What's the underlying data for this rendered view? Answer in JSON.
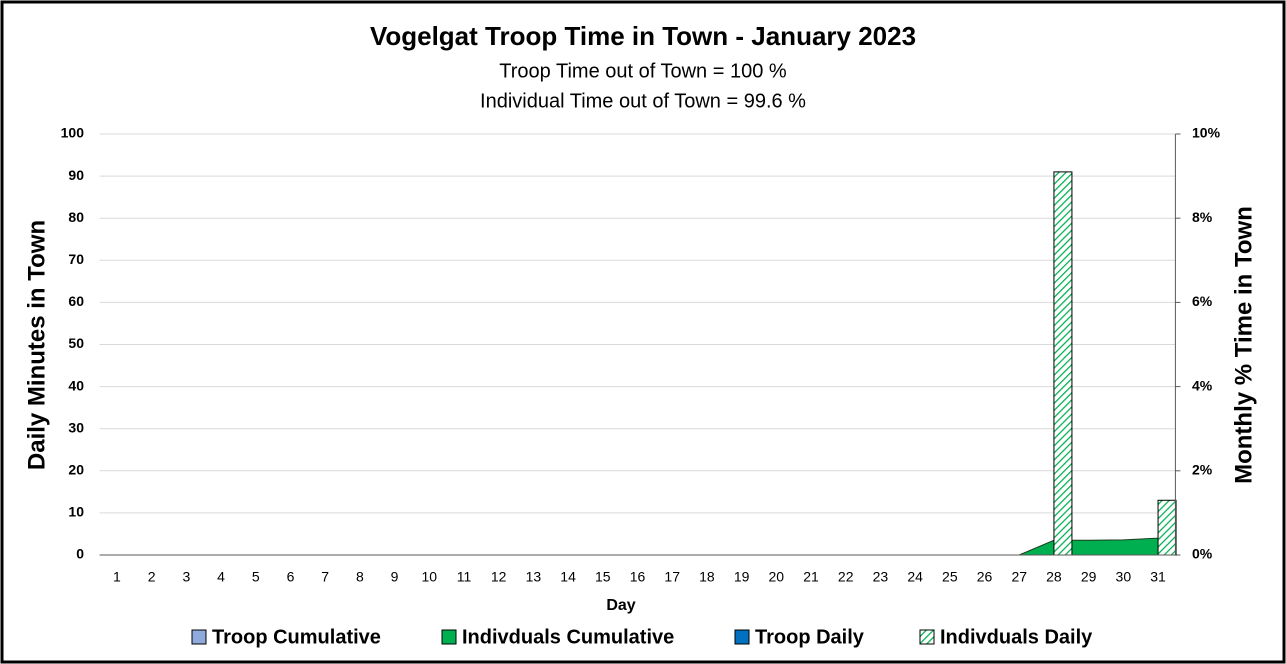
{
  "chart_data": {
    "type": "combo",
    "title": "Vogelgat Troop Time in Town - January 2023",
    "subtitles": [
      "Troop Time out of Town = 100 %",
      "Individual Time out of Town = 99.6 %"
    ],
    "x_label": "Day",
    "y_label": "Daily Minutes in Town",
    "y2_label": "Monthly % Time in Town",
    "categories": [
      "1",
      "2",
      "3",
      "4",
      "5",
      "6",
      "7",
      "8",
      "9",
      "10",
      "11",
      "12",
      "13",
      "14",
      "15",
      "16",
      "17",
      "18",
      "19",
      "20",
      "21",
      "22",
      "23",
      "24",
      "25",
      "26",
      "27",
      "28",
      "29",
      "30",
      "31"
    ],
    "ylim": [
      0,
      100
    ],
    "yticks": [
      0,
      10,
      20,
      30,
      40,
      50,
      60,
      70,
      80,
      90,
      100
    ],
    "y2lim": [
      0,
      10
    ],
    "y2ticks": [
      {
        "value": 0,
        "label": "0%"
      },
      {
        "value": 2,
        "label": "2%"
      },
      {
        "value": 4,
        "label": "4%"
      },
      {
        "value": 6,
        "label": "6%"
      },
      {
        "value": 8,
        "label": "8%"
      },
      {
        "value": 10,
        "label": "10%"
      }
    ],
    "grid": true,
    "legend": "bottom",
    "series": [
      {
        "name": "Troop Cumulative",
        "type": "area",
        "axis": "y2",
        "color": "#8faadc",
        "values": [
          0,
          0,
          0,
          0,
          0,
          0,
          0,
          0,
          0,
          0,
          0,
          0,
          0,
          0,
          0,
          0,
          0,
          0,
          0,
          0,
          0,
          0,
          0,
          0,
          0,
          0,
          0,
          0,
          0,
          0,
          0
        ]
      },
      {
        "name": "Indivduals Cumulative",
        "type": "area",
        "axis": "y2",
        "color": "#00b050",
        "values": [
          0,
          0,
          0,
          0,
          0,
          0,
          0,
          0,
          0,
          0,
          0,
          0,
          0,
          0,
          0,
          0,
          0,
          0,
          0,
          0,
          0,
          0,
          0,
          0,
          0,
          0,
          0,
          0.35,
          0.35,
          0.36,
          0.4
        ]
      },
      {
        "name": "Troop Daily",
        "type": "bar",
        "color": "#0070c0",
        "values": [
          0,
          0,
          0,
          0,
          0,
          0,
          0,
          0,
          0,
          0,
          0,
          0,
          0,
          0,
          0,
          0,
          0,
          0,
          0,
          0,
          0,
          0,
          0,
          0,
          0,
          0,
          0,
          0,
          0,
          0,
          0
        ]
      },
      {
        "name": "Indivduals Daily",
        "type": "bar",
        "color": "#00b050",
        "hatch": true,
        "values": [
          0,
          0,
          0,
          0,
          0,
          0,
          0,
          0,
          0,
          0,
          0,
          0,
          0,
          0,
          0,
          0,
          0,
          0,
          0,
          0,
          0,
          0,
          0,
          0,
          0,
          0,
          0,
          91,
          0,
          0,
          13
        ]
      }
    ]
  }
}
